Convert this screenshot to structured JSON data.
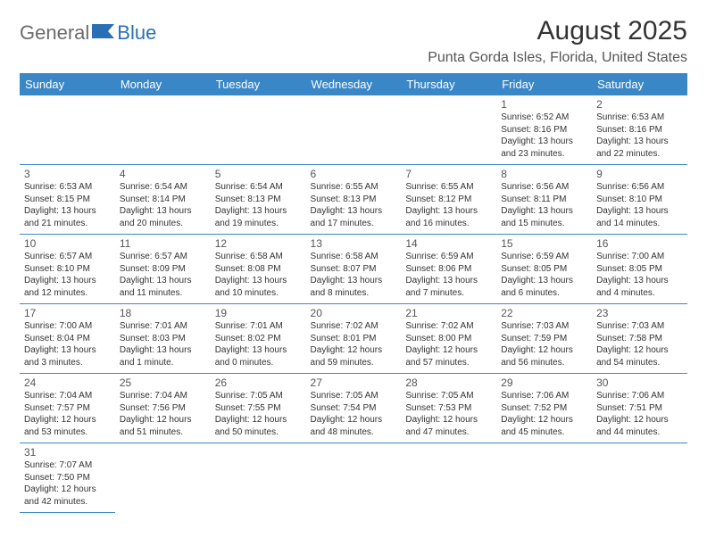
{
  "logo": {
    "text1": "General",
    "text2": "Blue"
  },
  "title": "August 2025",
  "subtitle": "Punta Gorda Isles, Florida, United States",
  "colors": {
    "header_bg": "#3a87c8",
    "header_text": "#ffffff",
    "row_border": "#3a87c8",
    "text": "#333333"
  },
  "day_headers": [
    "Sunday",
    "Monday",
    "Tuesday",
    "Wednesday",
    "Thursday",
    "Friday",
    "Saturday"
  ],
  "weeks": [
    [
      {
        "num": "",
        "lines": []
      },
      {
        "num": "",
        "lines": []
      },
      {
        "num": "",
        "lines": []
      },
      {
        "num": "",
        "lines": []
      },
      {
        "num": "",
        "lines": []
      },
      {
        "num": "1",
        "lines": [
          "Sunrise: 6:52 AM",
          "Sunset: 8:16 PM",
          "Daylight: 13 hours",
          "and 23 minutes."
        ]
      },
      {
        "num": "2",
        "lines": [
          "Sunrise: 6:53 AM",
          "Sunset: 8:16 PM",
          "Daylight: 13 hours",
          "and 22 minutes."
        ]
      }
    ],
    [
      {
        "num": "3",
        "lines": [
          "Sunrise: 6:53 AM",
          "Sunset: 8:15 PM",
          "Daylight: 13 hours",
          "and 21 minutes."
        ]
      },
      {
        "num": "4",
        "lines": [
          "Sunrise: 6:54 AM",
          "Sunset: 8:14 PM",
          "Daylight: 13 hours",
          "and 20 minutes."
        ]
      },
      {
        "num": "5",
        "lines": [
          "Sunrise: 6:54 AM",
          "Sunset: 8:13 PM",
          "Daylight: 13 hours",
          "and 19 minutes."
        ]
      },
      {
        "num": "6",
        "lines": [
          "Sunrise: 6:55 AM",
          "Sunset: 8:13 PM",
          "Daylight: 13 hours",
          "and 17 minutes."
        ]
      },
      {
        "num": "7",
        "lines": [
          "Sunrise: 6:55 AM",
          "Sunset: 8:12 PM",
          "Daylight: 13 hours",
          "and 16 minutes."
        ]
      },
      {
        "num": "8",
        "lines": [
          "Sunrise: 6:56 AM",
          "Sunset: 8:11 PM",
          "Daylight: 13 hours",
          "and 15 minutes."
        ]
      },
      {
        "num": "9",
        "lines": [
          "Sunrise: 6:56 AM",
          "Sunset: 8:10 PM",
          "Daylight: 13 hours",
          "and 14 minutes."
        ]
      }
    ],
    [
      {
        "num": "10",
        "lines": [
          "Sunrise: 6:57 AM",
          "Sunset: 8:10 PM",
          "Daylight: 13 hours",
          "and 12 minutes."
        ]
      },
      {
        "num": "11",
        "lines": [
          "Sunrise: 6:57 AM",
          "Sunset: 8:09 PM",
          "Daylight: 13 hours",
          "and 11 minutes."
        ]
      },
      {
        "num": "12",
        "lines": [
          "Sunrise: 6:58 AM",
          "Sunset: 8:08 PM",
          "Daylight: 13 hours",
          "and 10 minutes."
        ]
      },
      {
        "num": "13",
        "lines": [
          "Sunrise: 6:58 AM",
          "Sunset: 8:07 PM",
          "Daylight: 13 hours",
          "and 8 minutes."
        ]
      },
      {
        "num": "14",
        "lines": [
          "Sunrise: 6:59 AM",
          "Sunset: 8:06 PM",
          "Daylight: 13 hours",
          "and 7 minutes."
        ]
      },
      {
        "num": "15",
        "lines": [
          "Sunrise: 6:59 AM",
          "Sunset: 8:05 PM",
          "Daylight: 13 hours",
          "and 6 minutes."
        ]
      },
      {
        "num": "16",
        "lines": [
          "Sunrise: 7:00 AM",
          "Sunset: 8:05 PM",
          "Daylight: 13 hours",
          "and 4 minutes."
        ]
      }
    ],
    [
      {
        "num": "17",
        "lines": [
          "Sunrise: 7:00 AM",
          "Sunset: 8:04 PM",
          "Daylight: 13 hours",
          "and 3 minutes."
        ]
      },
      {
        "num": "18",
        "lines": [
          "Sunrise: 7:01 AM",
          "Sunset: 8:03 PM",
          "Daylight: 13 hours",
          "and 1 minute."
        ]
      },
      {
        "num": "19",
        "lines": [
          "Sunrise: 7:01 AM",
          "Sunset: 8:02 PM",
          "Daylight: 13 hours",
          "and 0 minutes."
        ]
      },
      {
        "num": "20",
        "lines": [
          "Sunrise: 7:02 AM",
          "Sunset: 8:01 PM",
          "Daylight: 12 hours",
          "and 59 minutes."
        ]
      },
      {
        "num": "21",
        "lines": [
          "Sunrise: 7:02 AM",
          "Sunset: 8:00 PM",
          "Daylight: 12 hours",
          "and 57 minutes."
        ]
      },
      {
        "num": "22",
        "lines": [
          "Sunrise: 7:03 AM",
          "Sunset: 7:59 PM",
          "Daylight: 12 hours",
          "and 56 minutes."
        ]
      },
      {
        "num": "23",
        "lines": [
          "Sunrise: 7:03 AM",
          "Sunset: 7:58 PM",
          "Daylight: 12 hours",
          "and 54 minutes."
        ]
      }
    ],
    [
      {
        "num": "24",
        "lines": [
          "Sunrise: 7:04 AM",
          "Sunset: 7:57 PM",
          "Daylight: 12 hours",
          "and 53 minutes."
        ]
      },
      {
        "num": "25",
        "lines": [
          "Sunrise: 7:04 AM",
          "Sunset: 7:56 PM",
          "Daylight: 12 hours",
          "and 51 minutes."
        ]
      },
      {
        "num": "26",
        "lines": [
          "Sunrise: 7:05 AM",
          "Sunset: 7:55 PM",
          "Daylight: 12 hours",
          "and 50 minutes."
        ]
      },
      {
        "num": "27",
        "lines": [
          "Sunrise: 7:05 AM",
          "Sunset: 7:54 PM",
          "Daylight: 12 hours",
          "and 48 minutes."
        ]
      },
      {
        "num": "28",
        "lines": [
          "Sunrise: 7:05 AM",
          "Sunset: 7:53 PM",
          "Daylight: 12 hours",
          "and 47 minutes."
        ]
      },
      {
        "num": "29",
        "lines": [
          "Sunrise: 7:06 AM",
          "Sunset: 7:52 PM",
          "Daylight: 12 hours",
          "and 45 minutes."
        ]
      },
      {
        "num": "30",
        "lines": [
          "Sunrise: 7:06 AM",
          "Sunset: 7:51 PM",
          "Daylight: 12 hours",
          "and 44 minutes."
        ]
      }
    ],
    [
      {
        "num": "31",
        "lines": [
          "Sunrise: 7:07 AM",
          "Sunset: 7:50 PM",
          "Daylight: 12 hours",
          "and 42 minutes."
        ]
      },
      {
        "num": "",
        "lines": [],
        "noborder": true
      },
      {
        "num": "",
        "lines": [],
        "noborder": true
      },
      {
        "num": "",
        "lines": [],
        "noborder": true
      },
      {
        "num": "",
        "lines": [],
        "noborder": true
      },
      {
        "num": "",
        "lines": [],
        "noborder": true
      },
      {
        "num": "",
        "lines": [],
        "noborder": true
      }
    ]
  ]
}
